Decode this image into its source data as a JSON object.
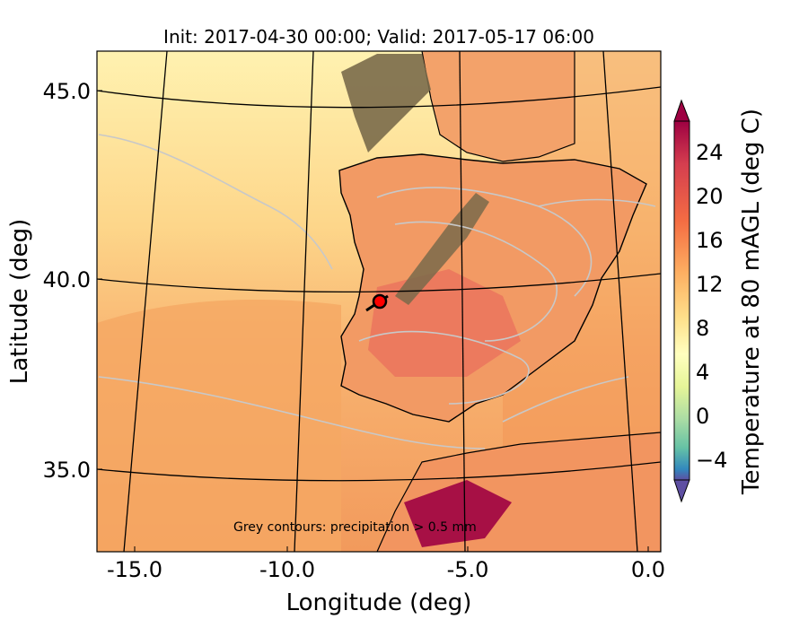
{
  "title": "Init: 2017-04-30 00:00; Valid: 2017-05-17 06:00",
  "xlabel": "Longitude (deg)",
  "ylabel": "Latitude (deg)",
  "colorbar_label": "Temperature at 80 mAGL (deg C)",
  "annotation": "Grey contours: precipitation > 0.5 mm",
  "x_ticks": [
    "-15.0",
    "-10.0",
    "-5.0",
    "0.0"
  ],
  "y_ticks": [
    "45.0",
    "40.0",
    "35.0"
  ],
  "colorbar_ticks": [
    "24",
    "20",
    "16",
    "12",
    "8",
    "4",
    "0",
    "−4"
  ],
  "marker": {
    "lon": -7.6,
    "lat": 39.3,
    "color": "#ff0000"
  },
  "colors": {
    "ocean_warm": "#f09a5a",
    "ocean_cool": "#fde7a0",
    "land": "#f29a64",
    "terrain": "#7a6a4a",
    "precip_contour": "#c8c8c8",
    "colorbar_high": "#9e0142",
    "colorbar_low": "#5e4fa2"
  }
}
